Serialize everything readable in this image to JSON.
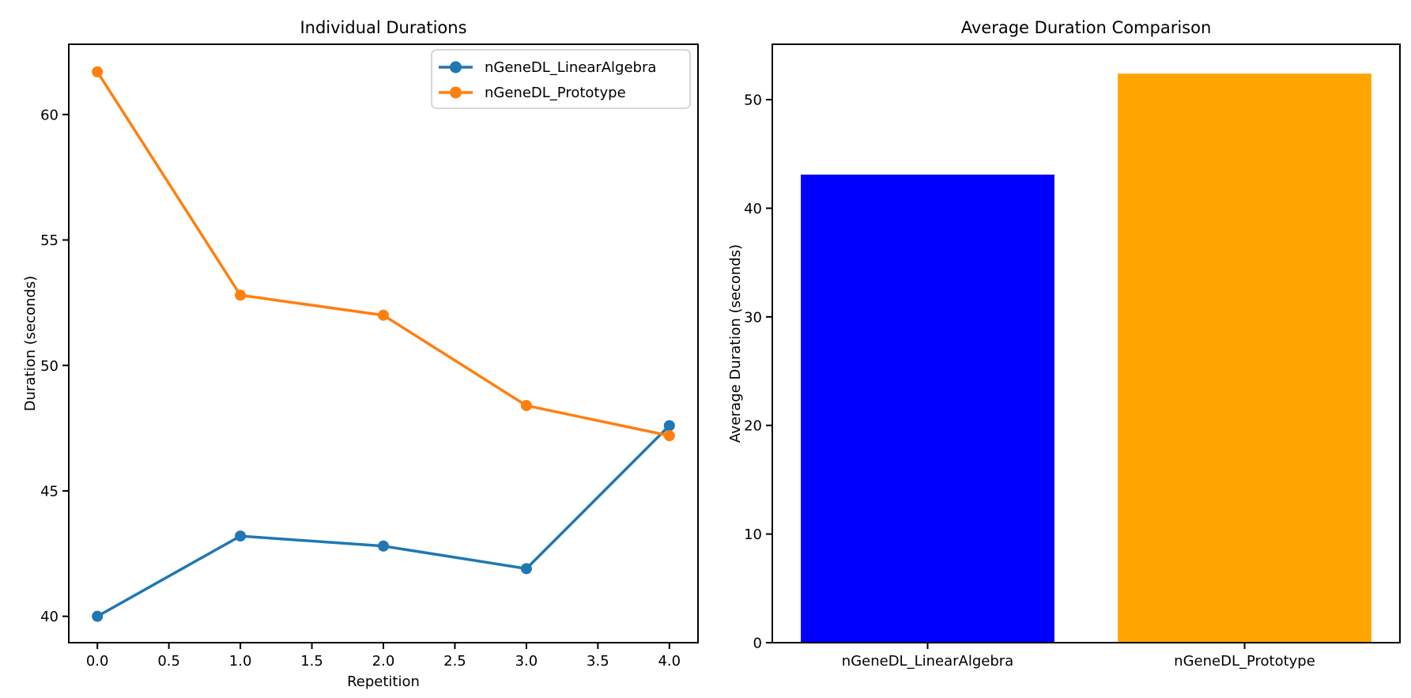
{
  "figure": {
    "background": "#ffffff",
    "text_color": "#000000",
    "spine_color": "#000000"
  },
  "chart_data": [
    {
      "type": "line",
      "title": "Individual Durations",
      "xlabel": "Repetition",
      "ylabel": "Duration (seconds)",
      "x": [
        0,
        1,
        2,
        3,
        4
      ],
      "series": [
        {
          "name": "nGeneDL_LinearAlgebra",
          "color": "#1f77b4",
          "values": [
            40.0,
            43.2,
            42.8,
            41.9,
            47.6
          ]
        },
        {
          "name": "nGeneDL_Prototype",
          "color": "#ff7f0e",
          "values": [
            61.7,
            52.8,
            52.0,
            48.4,
            47.2
          ]
        }
      ],
      "xlim": [
        -0.2,
        4.2
      ],
      "ylim": [
        38.95,
        62.8
      ],
      "xticks": {
        "values": [
          0,
          0.5,
          1,
          1.5,
          2,
          2.5,
          3,
          3.5,
          4
        ],
        "labels": [
          "0.0",
          "0.5",
          "1.0",
          "1.5",
          "2.0",
          "2.5",
          "3.0",
          "3.5",
          "4.0"
        ]
      },
      "yticks": {
        "values": [
          40,
          45,
          50,
          55,
          60
        ],
        "labels": [
          "40",
          "45",
          "50",
          "55",
          "60"
        ]
      },
      "legend": {
        "position": "upper right"
      },
      "grid": false,
      "marker": "circle",
      "line_width": 3.5,
      "marker_radius": 7
    },
    {
      "type": "bar",
      "title": "Average Duration Comparison",
      "xlabel": "",
      "ylabel": "Average Duration (seconds)",
      "categories": [
        "nGeneDL_LinearAlgebra",
        "nGeneDL_Prototype"
      ],
      "values": [
        43.1,
        52.4
      ],
      "colors": [
        "#0000ff",
        "#ffa500"
      ],
      "xlim": [
        -0.49,
        1.49
      ],
      "ylim": [
        0,
        55.1
      ],
      "bar_width": 0.8,
      "yticks": {
        "values": [
          0,
          10,
          20,
          30,
          40,
          50
        ],
        "labels": [
          "0",
          "10",
          "20",
          "30",
          "40",
          "50"
        ]
      },
      "grid": false
    }
  ]
}
